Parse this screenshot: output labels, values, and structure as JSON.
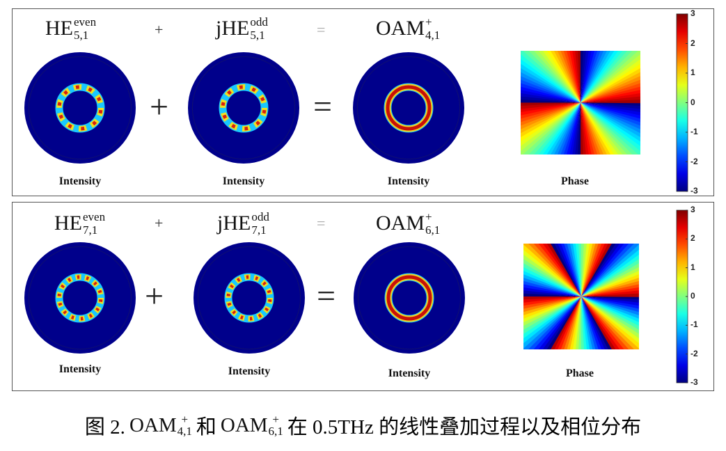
{
  "panels": [
    {
      "terms": [
        {
          "base": "HE",
          "sup": "even",
          "sub": "5,1"
        },
        {
          "base": "jHE",
          "sup": "odd",
          "sub": "5,1"
        },
        {
          "base": "OAM",
          "sup": "+",
          "sub": "4,1"
        }
      ],
      "top_operators": [
        "+",
        "="
      ],
      "operators": [
        "+",
        "="
      ],
      "captions": [
        "Intensity",
        "Intensity",
        "Intensity",
        "Phase"
      ],
      "colorbar_ticks": [
        3,
        2,
        1,
        0,
        -1,
        -2,
        -3
      ]
    },
    {
      "terms": [
        {
          "base": "HE",
          "sup": "even",
          "sub": "7,1"
        },
        {
          "base": "jHE",
          "sup": "odd",
          "sub": "7,1"
        },
        {
          "base": "OAM",
          "sup": "+",
          "sub": "6,1"
        }
      ],
      "top_operators": [
        "+",
        "="
      ],
      "operators": [
        "+",
        "="
      ],
      "captions": [
        "Intensity",
        "Intensity",
        "Intensity",
        "Phase"
      ],
      "colorbar_ticks": [
        3,
        2,
        1,
        0,
        -1,
        -2,
        -3
      ]
    }
  ],
  "caption": {
    "prefix": "图 2.",
    "term1": {
      "base": "OAM",
      "sup": "+",
      "sub": "4,1"
    },
    "mid": "和",
    "term2": {
      "base": "OAM",
      "sup": "+",
      "sub": "6,1"
    },
    "suffix": "在 0.5THz 的线性叠加过程以及相位分布"
  }
}
